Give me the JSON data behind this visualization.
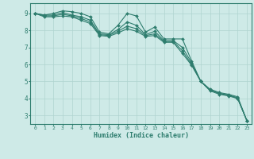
{
  "title": "",
  "xlabel": "Humidex (Indice chaleur)",
  "ylabel": "",
  "background_color": "#ceeae7",
  "grid_color": "#afd4d0",
  "line_color": "#2e7d6e",
  "marker_color": "#2e7d6e",
  "xlim": [
    -0.5,
    23.5
  ],
  "ylim": [
    2.5,
    9.6
  ],
  "yticks": [
    3,
    4,
    5,
    6,
    7,
    8,
    9
  ],
  "xticks": [
    0,
    1,
    2,
    3,
    4,
    5,
    6,
    7,
    8,
    9,
    10,
    11,
    12,
    13,
    14,
    15,
    16,
    17,
    18,
    19,
    20,
    21,
    22,
    23
  ],
  "lines": [
    {
      "x": [
        0,
        1,
        2,
        3,
        4,
        5,
        6,
        7,
        8,
        9,
        10,
        11,
        12,
        13,
        14,
        15,
        16,
        17,
        18,
        19,
        20,
        21,
        22,
        23
      ],
      "y": [
        9.0,
        8.9,
        9.0,
        9.15,
        9.1,
        9.0,
        8.8,
        7.9,
        7.8,
        8.3,
        9.0,
        8.85,
        7.9,
        8.2,
        7.5,
        7.5,
        7.5,
        6.2,
        5.0,
        4.5,
        4.3,
        4.2,
        4.0,
        2.7
      ]
    },
    {
      "x": [
        0,
        1,
        2,
        3,
        4,
        5,
        6,
        7,
        8,
        9,
        10,
        11,
        12,
        13,
        14,
        15,
        16,
        17,
        18,
        19,
        20,
        21,
        22,
        23
      ],
      "y": [
        9.0,
        8.9,
        8.9,
        9.05,
        8.9,
        8.8,
        8.6,
        7.8,
        7.75,
        8.05,
        8.5,
        8.3,
        7.75,
        7.95,
        7.4,
        7.4,
        7.0,
        6.1,
        5.0,
        4.55,
        4.35,
        4.25,
        4.1,
        2.7
      ]
    },
    {
      "x": [
        0,
        1,
        2,
        3,
        4,
        5,
        6,
        7,
        8,
        9,
        10,
        11,
        12,
        13,
        14,
        15,
        16,
        17,
        18,
        19,
        20,
        21,
        22,
        23
      ],
      "y": [
        9.0,
        8.85,
        8.85,
        8.95,
        8.85,
        8.7,
        8.5,
        7.75,
        7.7,
        7.95,
        8.25,
        8.1,
        7.7,
        7.8,
        7.35,
        7.35,
        6.8,
        6.0,
        5.0,
        4.5,
        4.3,
        4.2,
        4.05,
        2.7
      ]
    },
    {
      "x": [
        0,
        1,
        2,
        3,
        4,
        5,
        6,
        7,
        8,
        9,
        10,
        11,
        12,
        13,
        14,
        15,
        16,
        17,
        18,
        19,
        20,
        21,
        22,
        23
      ],
      "y": [
        9.0,
        8.8,
        8.8,
        8.85,
        8.8,
        8.6,
        8.4,
        7.7,
        7.65,
        7.85,
        8.1,
        7.95,
        7.65,
        7.7,
        7.3,
        7.3,
        6.65,
        5.95,
        5.0,
        4.45,
        4.25,
        4.15,
        4.0,
        2.7
      ]
    }
  ]
}
